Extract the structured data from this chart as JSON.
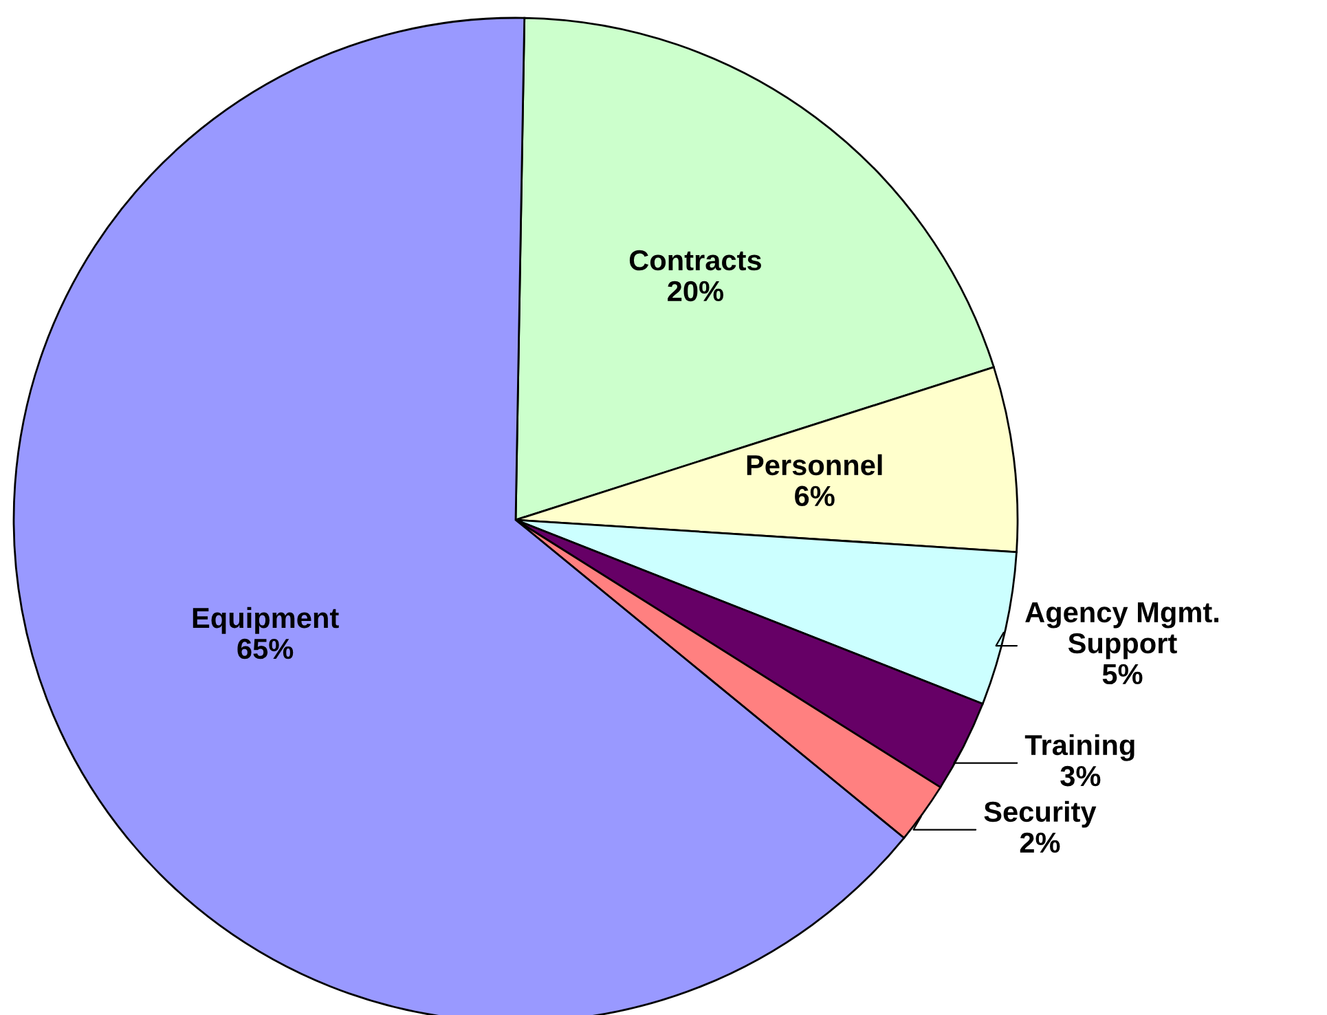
{
  "chart_data": {
    "type": "pie",
    "categories": [
      "Contracts",
      "Personnel",
      "Agency Mgmt. Support",
      "Training",
      "Security",
      "Equipment"
    ],
    "values": [
      20,
      6,
      5,
      3,
      2,
      65
    ],
    "colors": [
      "#ccffcc",
      "#ffffcc",
      "#ccffff",
      "#660066",
      "#ff8080",
      "#9999ff"
    ],
    "value_labels": [
      "20%",
      "6%",
      "5%",
      "3%",
      "2%",
      "65%"
    ],
    "legend": false
  }
}
